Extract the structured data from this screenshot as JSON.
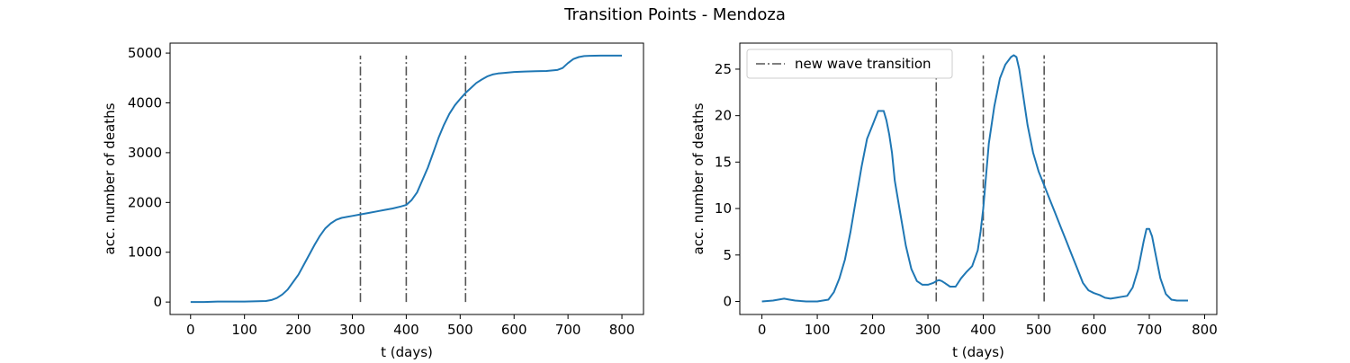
{
  "figure": {
    "suptitle": "Transition Points - Mendoza"
  },
  "colors": {
    "series": "#1f77b4",
    "transition": "#555555",
    "axes": "#000000"
  },
  "chart_data": [
    {
      "type": "line",
      "title": "",
      "xlabel": "t (days)",
      "ylabel": "acc. number of deaths",
      "xlim": [
        -38,
        840
      ],
      "ylim": [
        -250,
        5200
      ],
      "xticks": [
        0,
        100,
        200,
        300,
        400,
        500,
        600,
        700,
        800
      ],
      "yticks": [
        0,
        1000,
        2000,
        3000,
        4000,
        5000
      ],
      "grid": false,
      "legend": null,
      "vlines": {
        "x": [
          315,
          400,
          510
        ],
        "ymin": 0,
        "ymax": 4950,
        "style": "dashdot"
      },
      "series": [
        {
          "x": [
            0,
            25,
            50,
            75,
            100,
            125,
            140,
            150,
            160,
            170,
            180,
            190,
            200,
            210,
            220,
            230,
            240,
            250,
            260,
            270,
            280,
            290,
            300,
            315,
            330,
            345,
            360,
            375,
            390,
            400,
            410,
            420,
            430,
            440,
            450,
            460,
            470,
            480,
            490,
            500,
            510,
            520,
            530,
            540,
            550,
            560,
            570,
            580,
            600,
            620,
            640,
            660,
            680,
            690,
            700,
            710,
            720,
            730,
            740,
            760,
            780,
            800
          ],
          "y": [
            0,
            0,
            10,
            10,
            10,
            15,
            20,
            40,
            80,
            150,
            250,
            400,
            550,
            750,
            950,
            1150,
            1330,
            1480,
            1580,
            1650,
            1690,
            1710,
            1730,
            1760,
            1790,
            1820,
            1850,
            1880,
            1920,
            1950,
            2050,
            2200,
            2450,
            2700,
            3000,
            3300,
            3560,
            3780,
            3950,
            4080,
            4200,
            4300,
            4400,
            4470,
            4530,
            4570,
            4590,
            4600,
            4620,
            4630,
            4635,
            4640,
            4660,
            4700,
            4800,
            4880,
            4920,
            4940,
            4945,
            4950,
            4950,
            4950
          ]
        }
      ]
    },
    {
      "type": "line",
      "title": "",
      "xlabel": "t (days)",
      "ylabel": "acc. number of deaths",
      "xlim": [
        -40,
        822
      ],
      "ylim": [
        -1.4,
        27.8
      ],
      "xticks": [
        0,
        100,
        200,
        300,
        400,
        500,
        600,
        700,
        800
      ],
      "yticks": [
        0,
        5,
        10,
        15,
        20,
        25
      ],
      "grid": false,
      "legend": {
        "position": "top-left",
        "entries": [
          "new wave transition"
        ]
      },
      "vlines": {
        "x": [
          315,
          400,
          510
        ],
        "ymin": 0,
        "ymax": 26.5,
        "style": "dashdot"
      },
      "series": [
        {
          "x": [
            0,
            20,
            40,
            50,
            60,
            80,
            100,
            120,
            130,
            140,
            150,
            160,
            170,
            180,
            190,
            200,
            210,
            220,
            225,
            230,
            235,
            240,
            250,
            260,
            270,
            280,
            290,
            300,
            310,
            315,
            320,
            325,
            330,
            340,
            350,
            360,
            370,
            380,
            390,
            395,
            400,
            405,
            410,
            420,
            430,
            440,
            450,
            455,
            460,
            465,
            470,
            480,
            490,
            500,
            510,
            520,
            530,
            540,
            550,
            560,
            570,
            580,
            590,
            600,
            610,
            620,
            630,
            640,
            650,
            660,
            670,
            680,
            690,
            695,
            700,
            705,
            710,
            720,
            730,
            740,
            750,
            760,
            770
          ],
          "y": [
            0,
            0.1,
            0.3,
            0.2,
            0.1,
            0,
            0,
            0.2,
            1.0,
            2.5,
            4.5,
            7.5,
            11.0,
            14.5,
            17.5,
            19.0,
            20.5,
            20.5,
            19.5,
            18.0,
            16.0,
            13.0,
            9.5,
            6.0,
            3.5,
            2.2,
            1.8,
            1.8,
            2.0,
            2.2,
            2.3,
            2.2,
            2.0,
            1.6,
            1.6,
            2.5,
            3.2,
            3.8,
            5.5,
            7.5,
            10.0,
            13.5,
            17.0,
            21.0,
            24.0,
            25.5,
            26.3,
            26.5,
            26.3,
            25.0,
            23.0,
            19.0,
            16.0,
            14.0,
            12.5,
            11.0,
            9.5,
            8.0,
            6.5,
            5.0,
            3.5,
            2.0,
            1.2,
            0.9,
            0.7,
            0.4,
            0.3,
            0.4,
            0.5,
            0.6,
            1.5,
            3.5,
            6.5,
            7.8,
            7.8,
            7.0,
            5.5,
            2.5,
            0.8,
            0.2,
            0.1,
            0.1,
            0.1
          ]
        }
      ]
    }
  ]
}
